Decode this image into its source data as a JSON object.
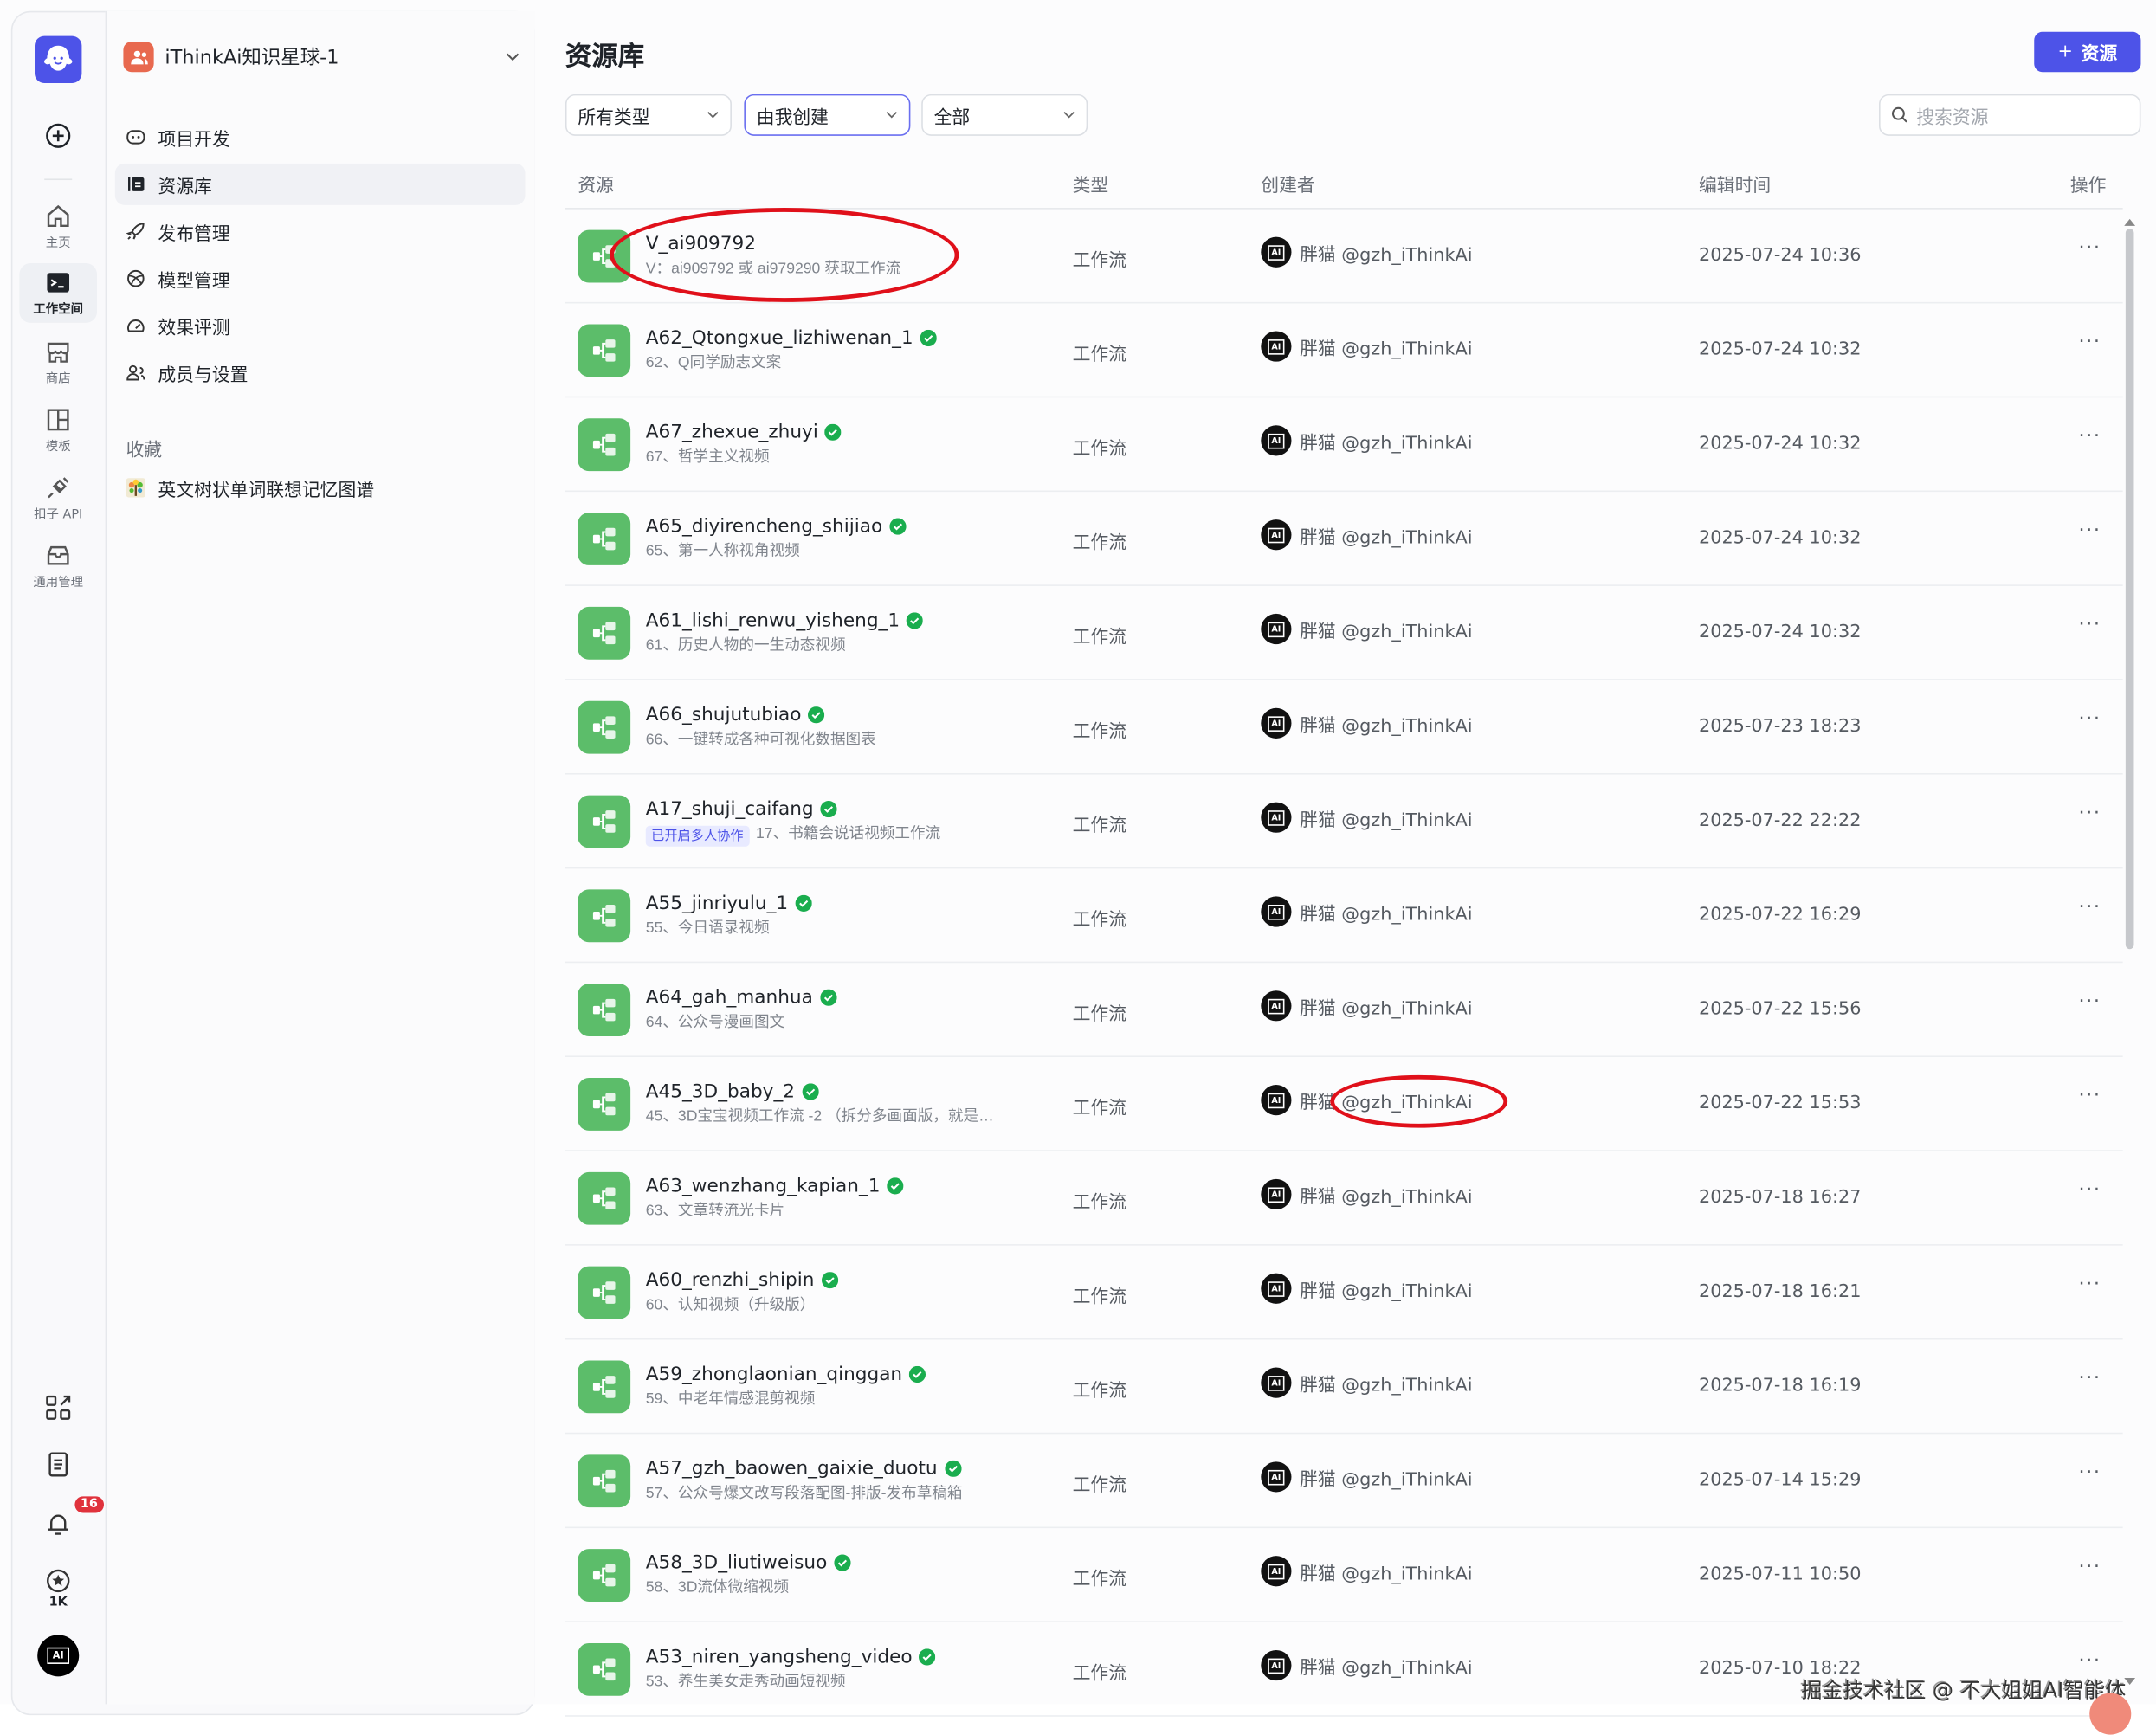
{
  "rail": {
    "items": [
      {
        "label": "主页",
        "icon": "home-icon"
      },
      {
        "label": "工作空间",
        "icon": "terminal-folder-icon",
        "active": true
      },
      {
        "label": "商店",
        "icon": "store-icon"
      },
      {
        "label": "模板",
        "icon": "template-icon"
      },
      {
        "label": "扣子 API",
        "icon": "plug-icon"
      },
      {
        "label": "通用管理",
        "icon": "inbox-icon"
      }
    ],
    "notifications_count": "16",
    "stars_label": "1K",
    "avatar_text": "AI"
  },
  "workspace": {
    "name": "iThinkAi知识星球-1"
  },
  "nav": [
    {
      "label": "项目开发",
      "icon": "project-icon"
    },
    {
      "label": "资源库",
      "icon": "library-icon",
      "active": true
    },
    {
      "label": "发布管理",
      "icon": "rocket-icon"
    },
    {
      "label": "模型管理",
      "icon": "model-icon"
    },
    {
      "label": "效果评测",
      "icon": "gauge-icon"
    },
    {
      "label": "成员与设置",
      "icon": "members-icon"
    }
  ],
  "favorites": {
    "title": "收藏",
    "items": [
      {
        "label": "英文树状单词联想记忆图谱"
      }
    ]
  },
  "main": {
    "title": "资源库",
    "add_button": "资源",
    "filters": [
      "所有类型",
      "由我创建",
      "全部"
    ],
    "search_placeholder": "搜索资源",
    "columns": [
      "资源",
      "类型",
      "创建者",
      "编辑时间",
      "操作"
    ]
  },
  "accent_color": "#4d53e8",
  "rows": [
    {
      "name": "V_ai909792",
      "desc": "V：ai909792 或 ai979290 获取工作流",
      "verified": false,
      "type": "工作流",
      "creator": "胖猫 @gzh_iThinkAi",
      "time": "2025-07-24 10:36"
    },
    {
      "name": "A62_Qtongxue_lizhiwenan_1",
      "desc": "62、Q同学励志文案",
      "verified": true,
      "type": "工作流",
      "creator": "胖猫 @gzh_iThinkAi",
      "time": "2025-07-24 10:32"
    },
    {
      "name": "A67_zhexue_zhuyi",
      "desc": "67、哲学主义视频",
      "verified": true,
      "type": "工作流",
      "creator": "胖猫 @gzh_iThinkAi",
      "time": "2025-07-24 10:32"
    },
    {
      "name": "A65_diyirencheng_shijiao",
      "desc": "65、第一人称视角视频",
      "verified": true,
      "type": "工作流",
      "creator": "胖猫 @gzh_iThinkAi",
      "time": "2025-07-24 10:32"
    },
    {
      "name": "A61_lishi_renwu_yisheng_1",
      "desc": "61、历史人物的一生动态视频",
      "verified": true,
      "type": "工作流",
      "creator": "胖猫 @gzh_iThinkAi",
      "time": "2025-07-24 10:32"
    },
    {
      "name": "A66_shujutubiao",
      "desc": "66、一键转成各种可视化数据图表",
      "verified": true,
      "type": "工作流",
      "creator": "胖猫 @gzh_iThinkAi",
      "time": "2025-07-23 18:23"
    },
    {
      "name": "A17_shuji_caifang",
      "badge": "已开启多人协作",
      "desc": "17、书籍会说话视频工作流",
      "verified": true,
      "type": "工作流",
      "creator": "胖猫 @gzh_iThinkAi",
      "time": "2025-07-22 22:22"
    },
    {
      "name": "A55_jinriyulu_1",
      "desc": "55、今日语录视频",
      "verified": true,
      "type": "工作流",
      "creator": "胖猫 @gzh_iThinkAi",
      "time": "2025-07-22 16:29"
    },
    {
      "name": "A64_gah_manhua",
      "desc": "64、公众号漫画图文",
      "verified": true,
      "type": "工作流",
      "creator": "胖猫 @gzh_iThinkAi",
      "time": "2025-07-22 15:56"
    },
    {
      "name": "A45_3D_baby_2",
      "desc": "45、3D宝宝视频工作流 -2 （拆分多画面版，就是…",
      "verified": true,
      "type": "工作流",
      "creator": "胖猫 @gzh_iThinkAi",
      "time": "2025-07-22 15:53"
    },
    {
      "name": "A63_wenzhang_kapian_1",
      "desc": "63、文章转流光卡片",
      "verified": true,
      "type": "工作流",
      "creator": "胖猫 @gzh_iThinkAi",
      "time": "2025-07-18 16:27"
    },
    {
      "name": "A60_renzhi_shipin",
      "desc": "60、认知视频（升级版）",
      "verified": true,
      "type": "工作流",
      "creator": "胖猫 @gzh_iThinkAi",
      "time": "2025-07-18 16:21"
    },
    {
      "name": "A59_zhonglaonian_qinggan",
      "desc": "59、中老年情感混剪视频",
      "verified": true,
      "type": "工作流",
      "creator": "胖猫 @gzh_iThinkAi",
      "time": "2025-07-18 16:19"
    },
    {
      "name": "A57_gzh_baowen_gaixie_duotu",
      "desc": "57、公众号爆文改写段落配图-排版-发布草稿箱",
      "verified": true,
      "type": "工作流",
      "creator": "胖猫 @gzh_iThinkAi",
      "time": "2025-07-14 15:29"
    },
    {
      "name": "A58_3D_liutiweisuo",
      "desc": "58、3D流体微缩视频",
      "verified": true,
      "type": "工作流",
      "creator": "胖猫 @gzh_iThinkAi",
      "time": "2025-07-11 10:50"
    },
    {
      "name": "A53_niren_yangsheng_video",
      "desc": "53、养生美女走秀动画短视频",
      "verified": true,
      "type": "工作流",
      "creator": "胖猫 @gzh_iThinkAi",
      "time": "2025-07-10 18:22"
    }
  ],
  "row_more_label": "···",
  "watermark": "掘金技术社区 @ 不大姐姐AI智能体"
}
